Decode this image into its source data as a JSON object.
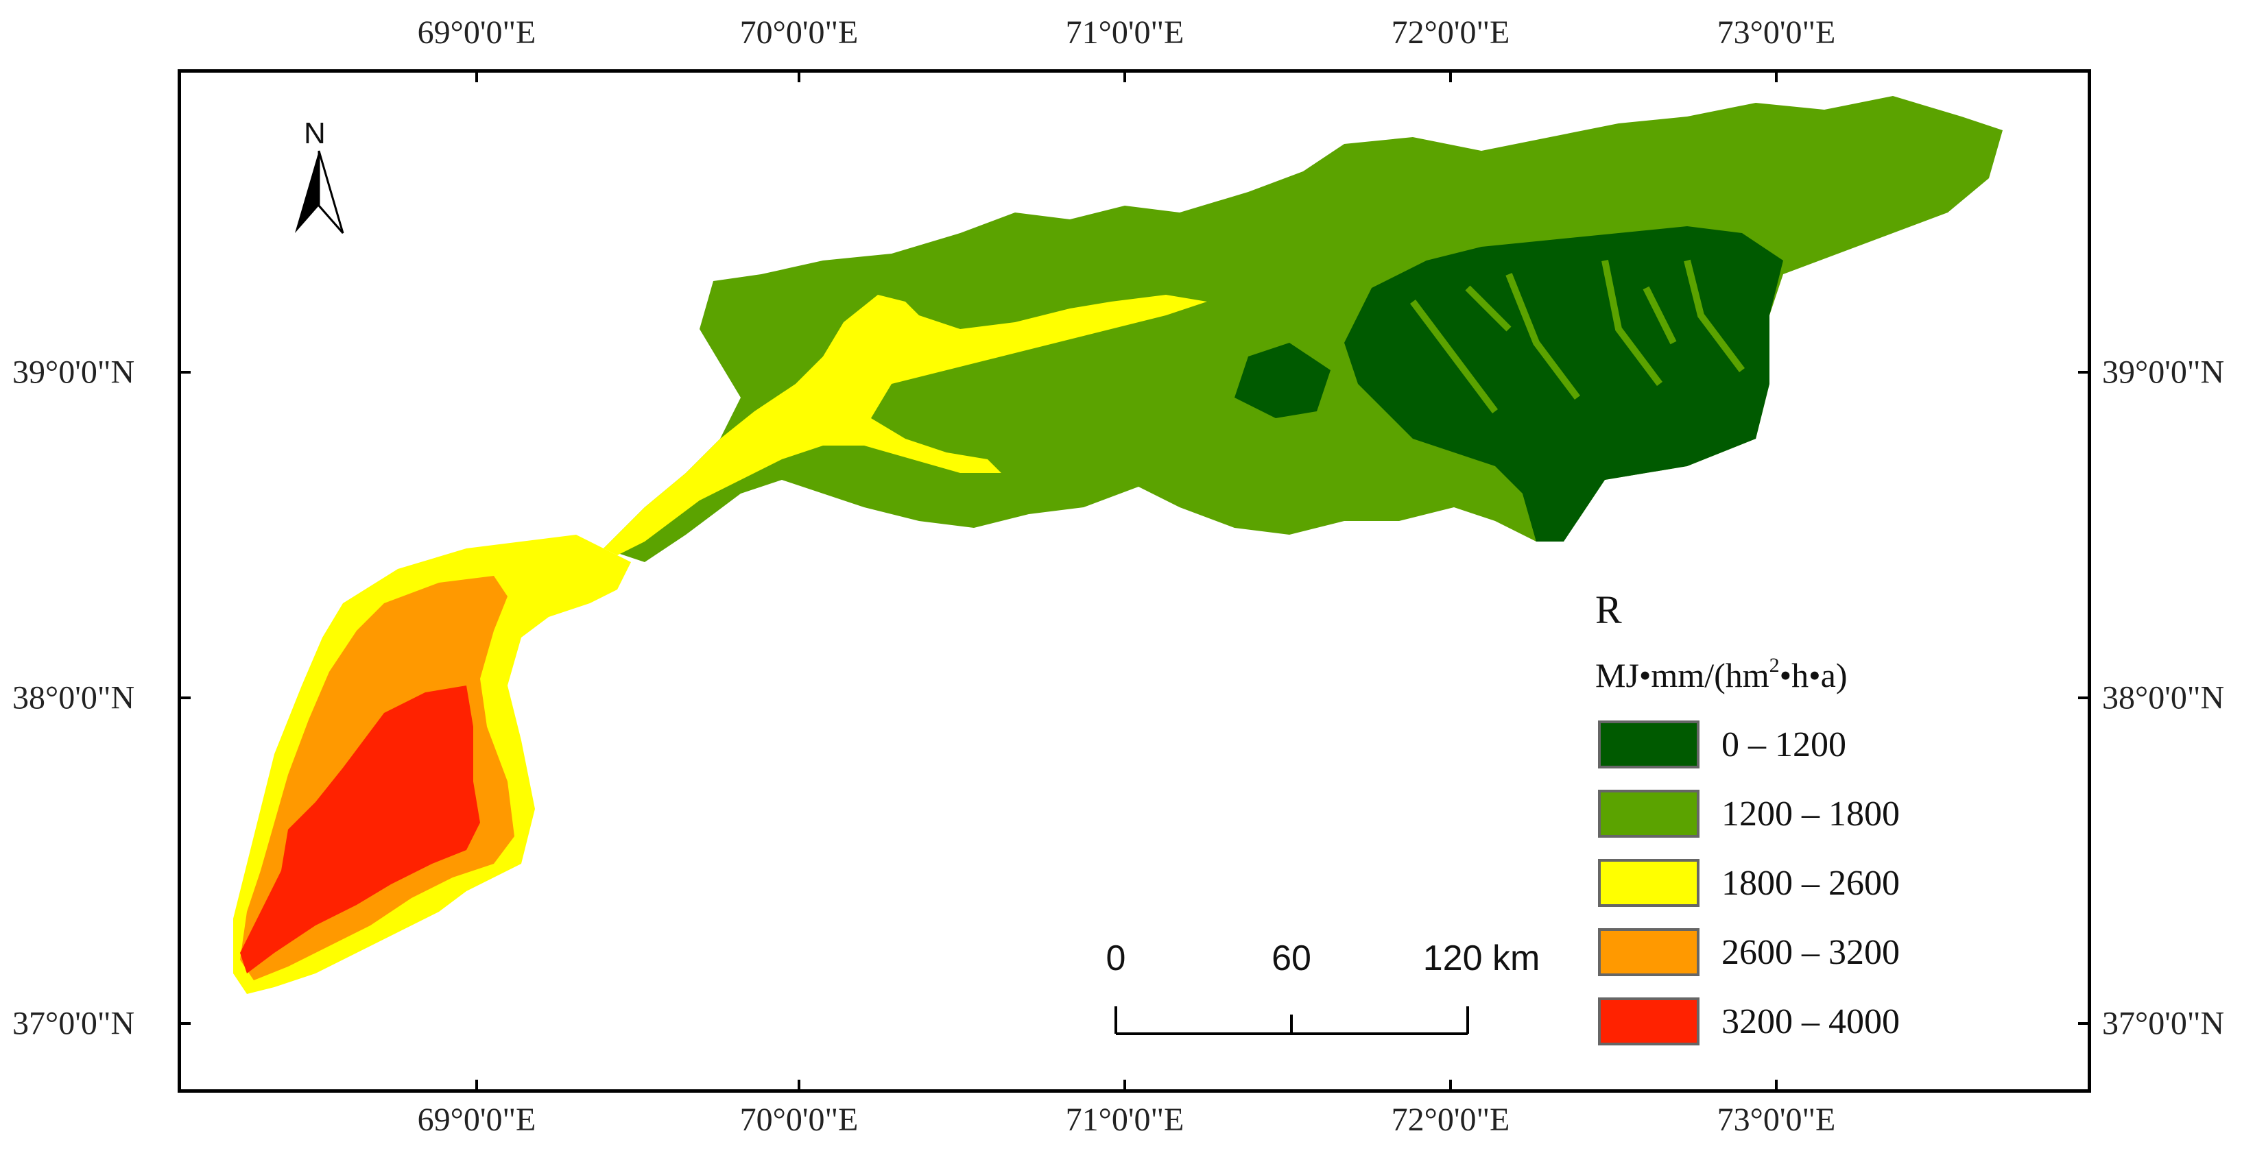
{
  "map": {
    "top_ticks": [
      "69°0'0\"E",
      "70°0'0\"E",
      "71°0'0\"E",
      "72°0'0\"E",
      "73°0'0\"E"
    ],
    "bottom_ticks": [
      "69°0'0\"E",
      "70°0'0\"E",
      "71°0'0\"E",
      "72°0'0\"E",
      "73°0'0\"E"
    ],
    "left_ticks": [
      "39°0'0\"N",
      "38°0'0\"N",
      "37°0'0\"N"
    ],
    "right_ticks": [
      "39°0'0\"N",
      "38°0'0\"N",
      "37°0'0\"N"
    ],
    "north_arrow": {
      "label": "N",
      "icon": "north-arrow-icon"
    }
  },
  "legend": {
    "title": "R",
    "unit_prefix": "MJ•mm/(hm",
    "unit_sup": "2",
    "unit_suffix": "•h•a)",
    "classes": [
      {
        "label": "0 – 1200",
        "color": "#005a00"
      },
      {
        "label": "1200 – 1800",
        "color": "#5ba300"
      },
      {
        "label": "1800 – 2600",
        "color": "#ffff00"
      },
      {
        "label": "2600 – 3200",
        "color": "#ff9900"
      },
      {
        "label": "3200 – 4000",
        "color": "#ff2200"
      }
    ]
  },
  "scale_bar": {
    "labels": [
      "0",
      "60",
      "120 km"
    ]
  }
}
